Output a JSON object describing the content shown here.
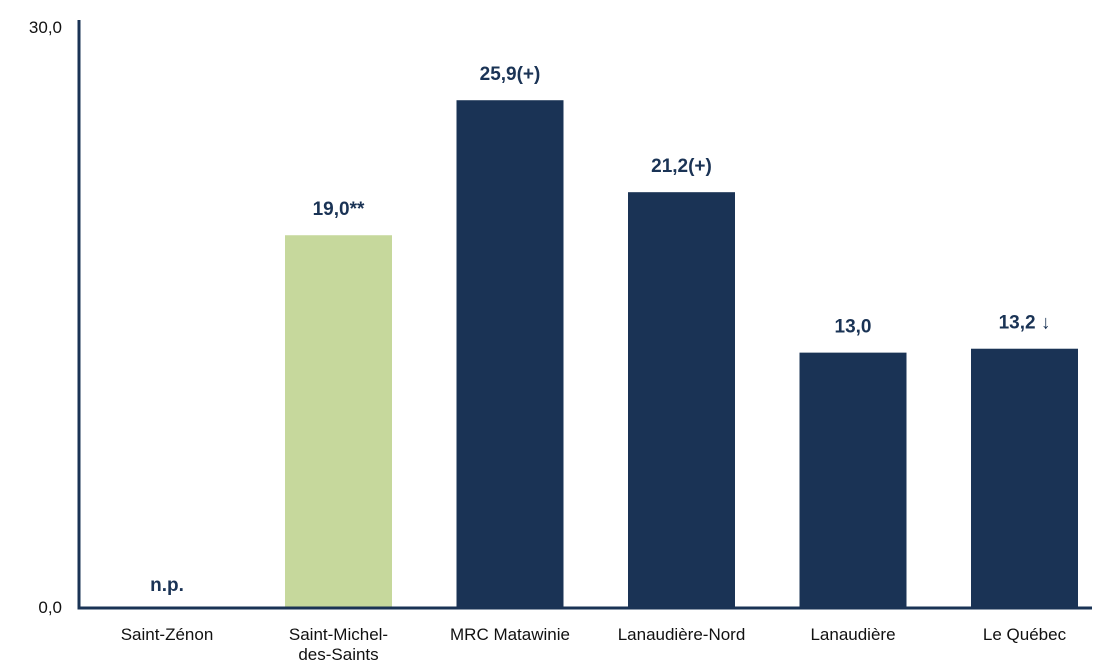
{
  "chart_data": {
    "type": "bar",
    "title": "",
    "xlabel": "",
    "ylabel": "",
    "ylim": [
      0,
      30
    ],
    "y_tick_labels": [
      "0,0",
      "30,0"
    ],
    "grid": false,
    "legend": "none",
    "categories": [
      [
        "Saint-Zénon"
      ],
      [
        "Saint-Michel-",
        "des-Saints"
      ],
      [
        "MRC Matawinie"
      ],
      [
        "Lanaudière-Nord"
      ],
      [
        "Lanaudière"
      ],
      [
        "Le Québec"
      ]
    ],
    "values": [
      null,
      19.0,
      25.9,
      21.2,
      13.0,
      13.2
    ],
    "data_labels": [
      "n.p.",
      "19,0**",
      "25,9(+)",
      "21,2(+)",
      "13,0",
      "13,2 ↓"
    ],
    "bar_colors": [
      "#1a3355",
      "#c6d89c",
      "#1a3355",
      "#1a3355",
      "#1a3355",
      "#1a3355"
    ],
    "colors": {
      "axis": "#1a3355",
      "highlight": "#c6d89c",
      "primary": "#1a3355",
      "label_text": "#1a3355"
    }
  }
}
